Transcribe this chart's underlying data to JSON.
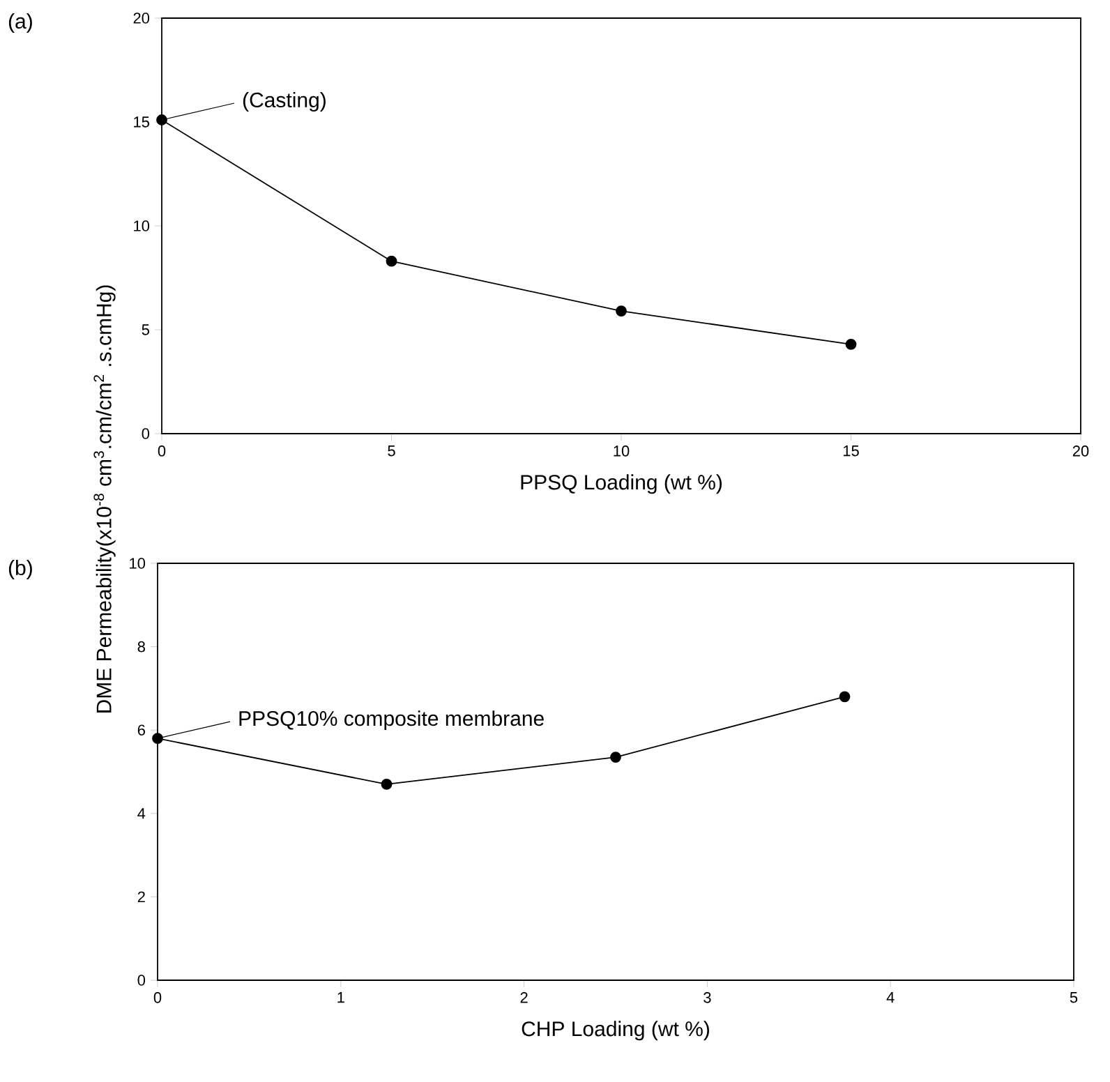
{
  "chart_data": [
    {
      "type": "line",
      "xlabel": "PPSQ Loading (wt %)",
      "ylabel": "DME Permeability(x10$^{-8}$ cm$^{3}$.cm/cm$^{2}$ .s.cmHg)",
      "x": [
        0,
        5,
        10,
        15
      ],
      "values": [
        15.1,
        8.3,
        5.9,
        4.3
      ],
      "color": "#000000",
      "marker": "circle",
      "line_style": "solid",
      "xlim": [
        0,
        20
      ],
      "ylim": [
        0,
        20
      ],
      "xticks": [
        0,
        5,
        10,
        15,
        20
      ],
      "yticks": [
        0,
        5,
        10,
        15,
        20
      ],
      "annotations": [
        "(a)",
        {
          "text": "(Casting)",
          "x": 0,
          "y": 15.1
        }
      ]
    },
    {
      "type": "line",
      "xlabel": "CHP Loading (wt %)",
      "x": [
        0,
        1.25,
        2.5,
        3.75
      ],
      "values": [
        5.8,
        4.7,
        5.35,
        6.8
      ],
      "color": "#000000",
      "marker": "circle",
      "line_style": "solid",
      "xlim": [
        0,
        5
      ],
      "ylim": [
        0,
        10
      ],
      "xticks": [
        0,
        1,
        2,
        3,
        4,
        5
      ],
      "yticks": [
        0,
        2,
        4,
        6,
        8,
        10
      ],
      "annotations": [
        "(b)",
        {
          "text": "PPSQ10% composite membrane",
          "x": 0,
          "y": 5.8
        }
      ]
    }
  ]
}
